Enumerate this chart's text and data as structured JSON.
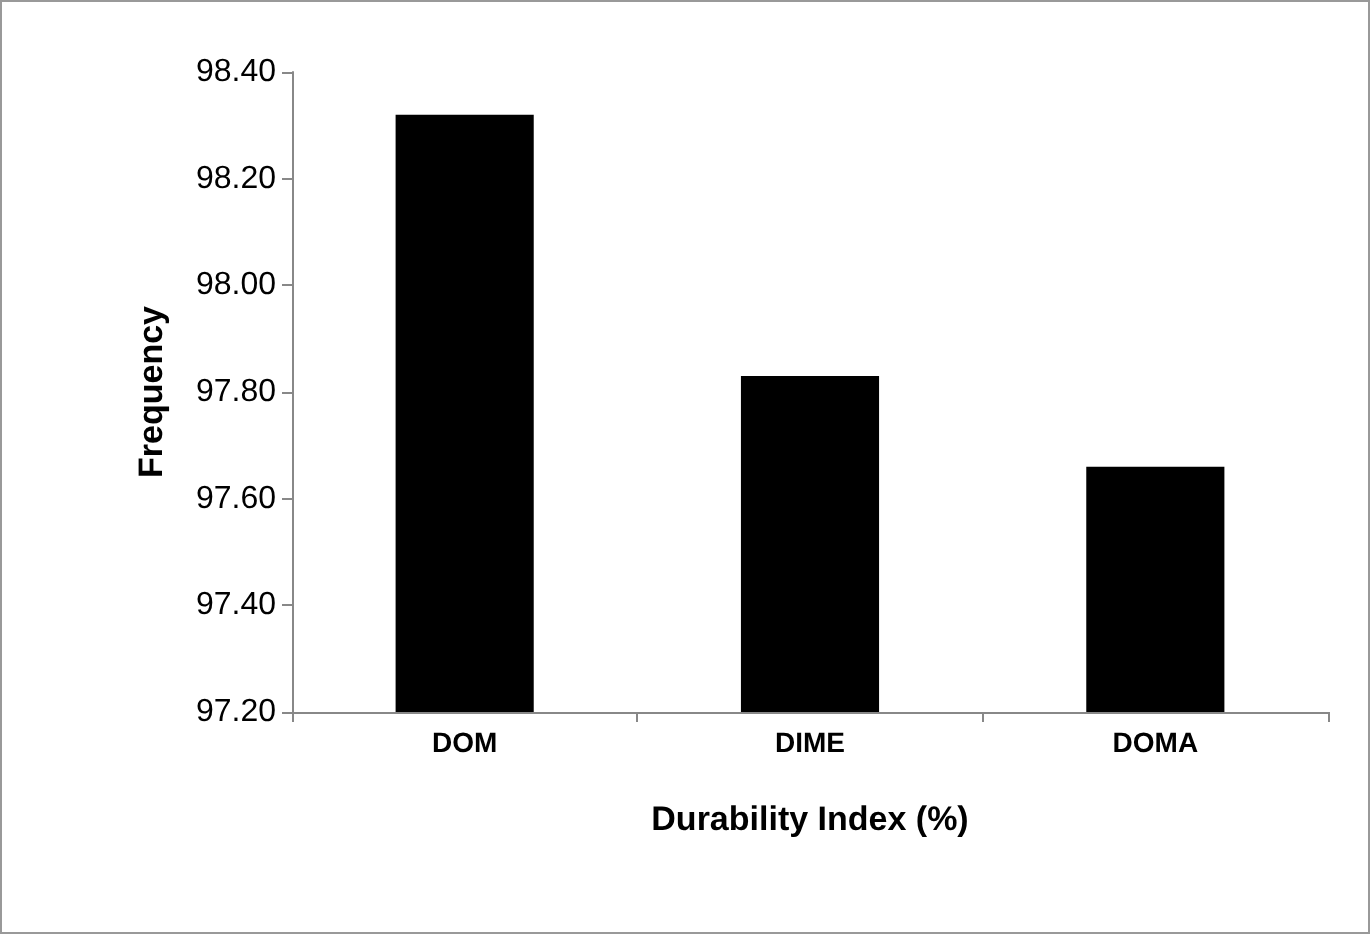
{
  "chart_data": {
    "type": "bar",
    "xlabel": "Durability Index (%)",
    "ylabel": "Frequency",
    "categories": [
      "DOM",
      "DIME",
      "DOMA"
    ],
    "values": [
      98.32,
      97.83,
      97.66
    ],
    "color": "#000000",
    "ylim": [
      97.2,
      98.4
    ],
    "yticks": [
      {
        "value": 97.2,
        "label": "97.20"
      },
      {
        "value": 97.4,
        "label": "97.40"
      },
      {
        "value": 97.6,
        "label": "97.60"
      },
      {
        "value": 97.8,
        "label": "97.80"
      },
      {
        "value": 98.0,
        "label": "98.00"
      },
      {
        "value": 98.2,
        "label": "98.20"
      },
      {
        "value": 98.4,
        "label": "98.40"
      }
    ],
    "grid": false
  }
}
